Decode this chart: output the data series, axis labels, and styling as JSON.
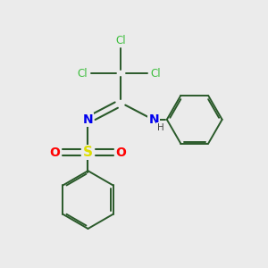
{
  "bg_color": "#ebebeb",
  "colors": {
    "Cl": "#3dbe3d",
    "N": "#0000ee",
    "S": "#dddd00",
    "O": "#ff0000",
    "H": "#444444",
    "bond": "#2a5a2a"
  },
  "layout": {
    "xlim": [
      0,
      10
    ],
    "ylim": [
      0,
      10
    ]
  }
}
